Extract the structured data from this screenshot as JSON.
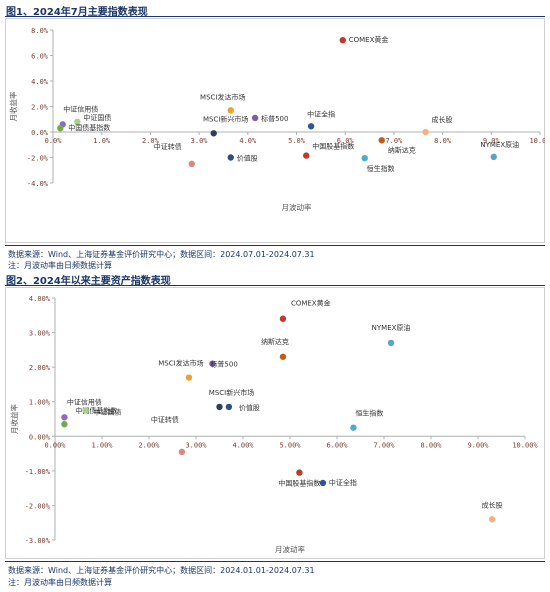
{
  "figures": [
    {
      "title": "图1、2024年7月主要指数表现",
      "source_note": "数据来源：Wind、上海证券基金评价研究中心；数据区间：2024.07.01-2024.07.31",
      "footnote": "注：月波动率由日频数据计算"
    },
    {
      "title": "图2、2024年以来主要资产指数表现",
      "source_note": "数据来源：Wind、上海证券基金评价研究中心；数据区间：2024.01.01-2024.07.31",
      "footnote": "注：月波动率由日频数据计算"
    }
  ],
  "chart_data": [
    {
      "type": "scatter",
      "title": "",
      "xlabel": "月波动率",
      "ylabel": "月收益率",
      "xlim": [
        0,
        10
      ],
      "ylim": [
        -4,
        8
      ],
      "x_ticks": [
        "0.0%",
        "1.0%",
        "2.0%",
        "3.0%",
        "4.0%",
        "5.0%",
        "6.0%",
        "7.0%",
        "8.0%",
        "9.0%",
        "10.0%"
      ],
      "y_ticks": [
        "8.0%",
        "6.0%",
        "4.0%",
        "2.0%",
        "0.0%",
        "-2.0%",
        "-4.0%"
      ],
      "grid": false,
      "legend": "none",
      "points": [
        {
          "label": "COMEX黄金",
          "x": 5.95,
          "y": 7.2,
          "color": "#c0392b"
        },
        {
          "label": "MSCI发达市场",
          "x": 3.65,
          "y": 1.7,
          "color": "#f0a030"
        },
        {
          "label": "标普500",
          "x": 4.15,
          "y": 1.1,
          "color": "#7b5ea7"
        },
        {
          "label": "MSCI新兴市场",
          "x": 3.3,
          "y": -0.1,
          "color": "#2d3e5e"
        },
        {
          "label": "中证信用债",
          "x": 0.2,
          "y": 0.6,
          "color": "#8e6bbf"
        },
        {
          "label": "中证国债",
          "x": 0.5,
          "y": 0.8,
          "color": "#a8d08d"
        },
        {
          "label": "中国债基指数",
          "x": 0.15,
          "y": 0.3,
          "color": "#70ad47"
        },
        {
          "label": "中证全指",
          "x": 5.3,
          "y": 0.45,
          "color": "#2f5597"
        },
        {
          "label": "成长股",
          "x": 7.65,
          "y": 0.0,
          "color": "#f4b183"
        },
        {
          "label": "纳斯达克",
          "x": 6.75,
          "y": -0.65,
          "color": "#c55a11"
        },
        {
          "label": "NYMEX原油",
          "x": 9.05,
          "y": -1.95,
          "color": "#5ba3c9"
        },
        {
          "label": "中证转债",
          "x": 2.85,
          "y": -2.5,
          "color": "#d98880"
        },
        {
          "label": "价值股",
          "x": 3.65,
          "y": -2.0,
          "color": "#2e4f7f"
        },
        {
          "label": "中国股基指数",
          "x": 5.2,
          "y": -1.85,
          "color": "#c0392b"
        },
        {
          "label": "恒生指数",
          "x": 6.4,
          "y": -2.05,
          "color": "#4bacc6"
        }
      ]
    },
    {
      "type": "scatter",
      "title": "",
      "xlabel": "月波动率",
      "ylabel": "月收益率",
      "xlim": [
        0,
        10
      ],
      "ylim": [
        -3,
        4
      ],
      "x_ticks": [
        "0.00%",
        "1.00%",
        "2.00%",
        "3.00%",
        "4.00%",
        "5.00%",
        "6.00%",
        "7.00%",
        "8.00%",
        "9.00%",
        "10.00%"
      ],
      "y_ticks": [
        "4.00%",
        "3.00%",
        "2.00%",
        "1.00%",
        "0.00%",
        "-1.00%",
        "-2.00%",
        "-3.00%"
      ],
      "grid": false,
      "legend": "none",
      "points": [
        {
          "label": "COMEX黄金",
          "x": 4.85,
          "y": 3.4,
          "color": "#c0392b"
        },
        {
          "label": "NYMEX原油",
          "x": 7.15,
          "y": 2.7,
          "color": "#5ba3c9"
        },
        {
          "label": "纳斯达克",
          "x": 4.85,
          "y": 2.3,
          "color": "#c55a11"
        },
        {
          "label": "标普500",
          "x": 3.35,
          "y": 2.1,
          "color": "#7b5ea7"
        },
        {
          "label": "MSCI发达市场",
          "x": 2.85,
          "y": 1.7,
          "color": "#f0a030"
        },
        {
          "label": "MSCI新兴市场",
          "x": 3.5,
          "y": 0.85,
          "color": "#2d3e5e"
        },
        {
          "label": "价值股",
          "x": 3.7,
          "y": 0.85,
          "color": "#2e4f7f"
        },
        {
          "label": "中证信用债",
          "x": 0.2,
          "y": 0.55,
          "color": "#8e6bbf"
        },
        {
          "label": "中国债基指数",
          "x": 0.2,
          "y": 0.35,
          "color": "#70ad47"
        },
        {
          "label": "中证国债",
          "x": 0.65,
          "y": 0.75,
          "color": "#a8d08d"
        },
        {
          "label": "中证转债",
          "x": 2.7,
          "y": -0.45,
          "color": "#d98880"
        },
        {
          "label": "恒生指数",
          "x": 6.35,
          "y": 0.25,
          "color": "#4bacc6"
        },
        {
          "label": "中国股基指数",
          "x": 5.2,
          "y": -1.05,
          "color": "#c0392b"
        },
        {
          "label": "中证全指",
          "x": 5.7,
          "y": -1.35,
          "color": "#2f5597"
        },
        {
          "label": "成长股",
          "x": 9.3,
          "y": -2.4,
          "color": "#f4b183"
        }
      ]
    }
  ]
}
